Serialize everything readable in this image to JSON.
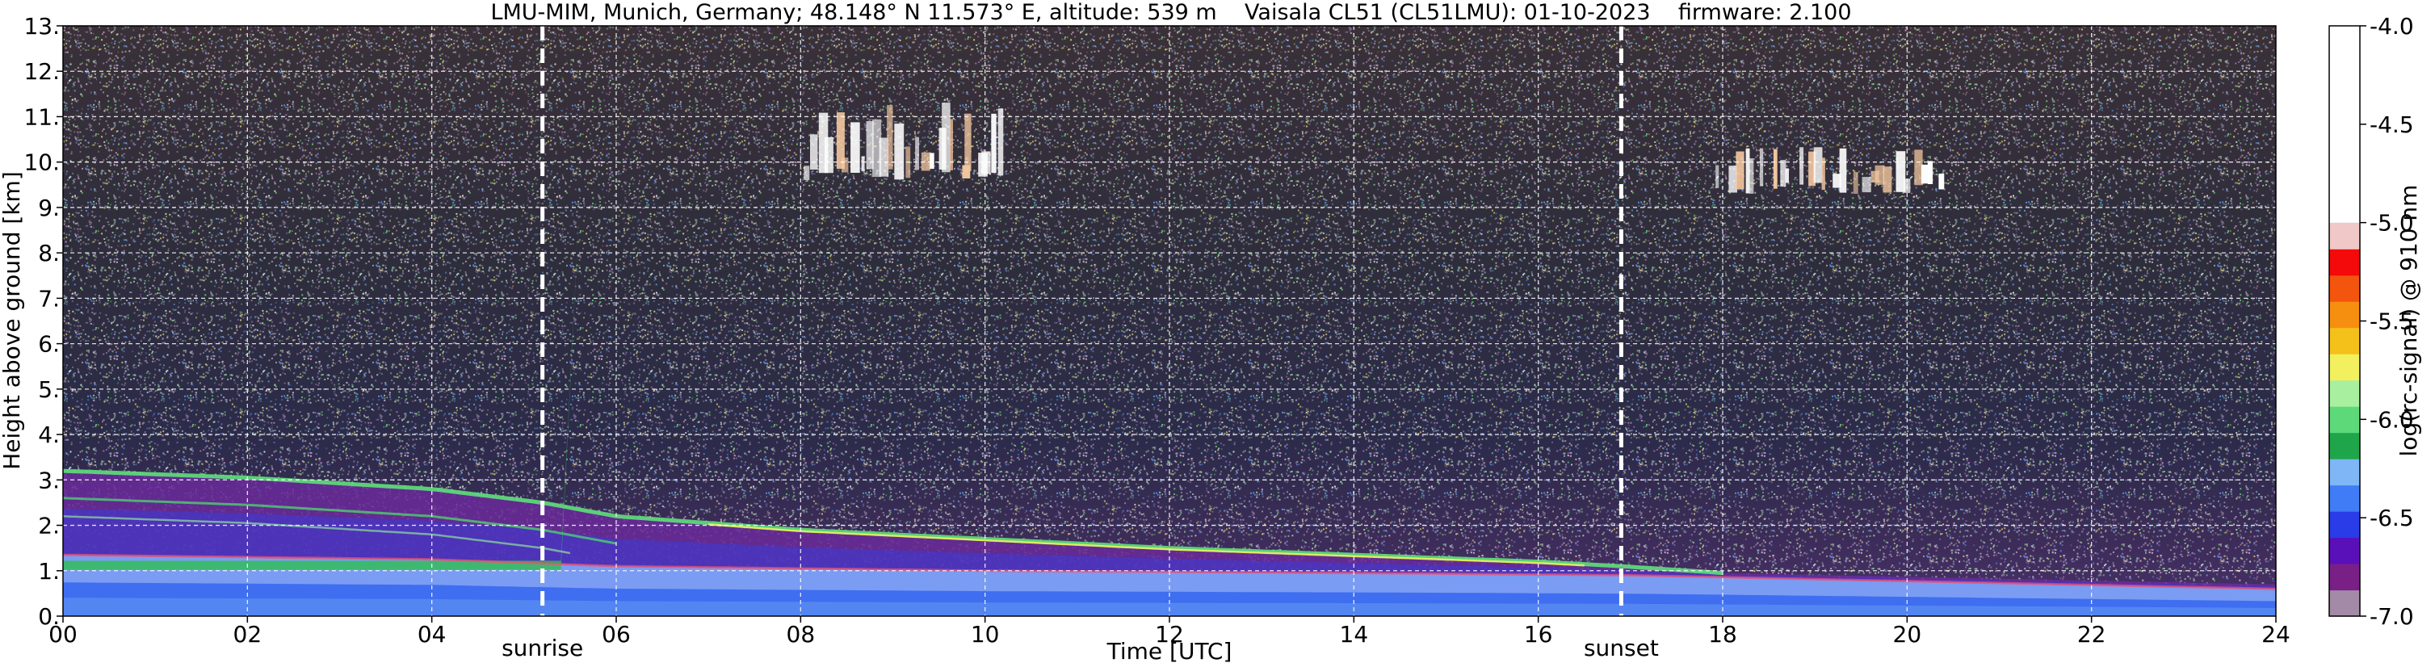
{
  "chart_data": {
    "type": "heatmap",
    "title": "LMU-MIM, Munich, Germany; 48.148° N 11.573° E, altitude: 539 m    Vaisala CL51 (CL51LMU): 01-10-2023    firmware: 2.100",
    "xlabel": "Time [UTC]",
    "ylabel": "Height above ground [km]",
    "colorbar_label": "log(rc-signal) @ 910 nm",
    "xlim": [
      0,
      24
    ],
    "ylim": [
      0,
      13
    ],
    "x_ticks": [
      0,
      2,
      4,
      6,
      8,
      10,
      12,
      14,
      16,
      18,
      20,
      22,
      24
    ],
    "x_tick_labels": [
      "00",
      "02",
      "04",
      "06",
      "08",
      "10",
      "12",
      "14",
      "16",
      "18",
      "20",
      "22",
      "24"
    ],
    "y_ticks": [
      0,
      1,
      2,
      3,
      4,
      5,
      6,
      7,
      8,
      9,
      10,
      11,
      12,
      13
    ],
    "y_tick_labels": [
      "0.",
      "1.",
      "2.",
      "3.",
      "4.",
      "5.",
      "6.",
      "7.",
      "8.",
      "9.",
      "10.",
      "11.",
      "12.",
      "13."
    ],
    "grid": true,
    "colorbar_range": [
      -7.0,
      -4.0
    ],
    "colorbar_ticks": [
      -7.0,
      -6.5,
      -6.0,
      -5.5,
      -5.0,
      -4.5,
      -4.0
    ],
    "colorbar_tick_labels": [
      "-7.0",
      "-6.5",
      "-6.0",
      "-5.5",
      "-5.0",
      "-4.5",
      "-4.0"
    ],
    "markers": [
      {
        "label": "sunrise",
        "x": 5.2
      },
      {
        "label": "sunset",
        "x": 16.9
      }
    ],
    "features": {
      "surface_layer_top": [
        [
          0,
          1.35
        ],
        [
          4,
          1.25
        ],
        [
          6,
          1.1
        ],
        [
          10,
          1.0
        ],
        [
          14,
          0.95
        ],
        [
          17,
          0.9
        ],
        [
          24,
          0.6
        ]
      ],
      "residual_layer_top": [
        [
          0,
          3.2
        ],
        [
          2,
          3.05
        ],
        [
          4,
          2.8
        ],
        [
          5.2,
          2.5
        ],
        [
          6,
          2.2
        ],
        [
          8,
          1.9
        ],
        [
          10,
          1.7
        ],
        [
          12,
          1.5
        ],
        [
          14,
          1.35
        ],
        [
          16,
          1.2
        ],
        [
          16.9,
          1.1
        ],
        [
          18,
          0.95
        ],
        [
          24,
          0.7
        ]
      ],
      "cirrus_clouds": [
        {
          "t_start": 8.0,
          "t_end": 10.2,
          "h_bottom": 9.6,
          "h_top": 11.2
        },
        {
          "t_start": 17.9,
          "t_end": 20.4,
          "h_bottom": 9.3,
          "h_top": 10.3
        }
      ]
    },
    "colors": {
      "colormap": [
        "#a38aa6",
        "#7a1f86",
        "#5a10b8",
        "#2a3be8",
        "#3f7cf6",
        "#7fb6f6",
        "#1fa64a",
        "#5ed97a",
        "#a8f0a0",
        "#f3f060",
        "#f4c01a",
        "#f68e10",
        "#f3540e",
        "#f40a0a",
        "#f0c8c8",
        "#ffffff"
      ],
      "marker_line": "#ffffff",
      "grid": "#ffffff"
    }
  }
}
